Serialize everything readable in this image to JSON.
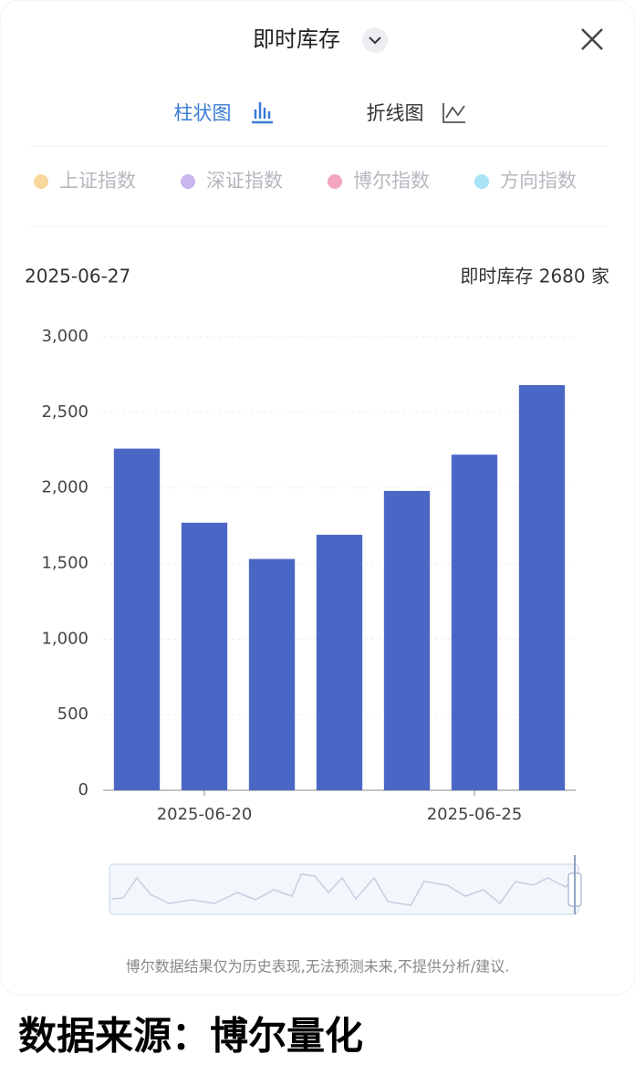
{
  "header": {
    "title": "即时库存"
  },
  "tabs": [
    "柱状图",
    "折线图"
  ],
  "indices": [
    {
      "name": "上证指数",
      "color": "#f7d79b"
    },
    {
      "name": "深证指数",
      "color": "#c9b6ef"
    },
    {
      "name": "博尔指数",
      "color": "#f2a5bd"
    },
    {
      "name": "方向指数",
      "color": "#a9e3f6"
    }
  ],
  "info": {
    "date": "2025-06-27",
    "summary": "即时库存 2680 家"
  },
  "chart_data": {
    "type": "bar",
    "categories": [
      null,
      "2025-06-20",
      null,
      null,
      null,
      "2025-06-25",
      null
    ],
    "values": [
      2260,
      1770,
      1530,
      1690,
      1980,
      2220,
      2680
    ],
    "color": "#4b67c5",
    "ylim": [
      0,
      3000
    ],
    "yticks": [
      0,
      500,
      {
        "value": 1000,
        "label": "1,000"
      },
      {
        "value": 1500,
        "label": "1,500"
      },
      {
        "value": 2000,
        "label": "2,000"
      },
      {
        "value": 2500,
        "label": "2,500"
      },
      {
        "value": 3000,
        "label": "3,000"
      }
    ],
    "grid": true
  },
  "disclaimer": "博尔数据结果仅为历史表现,无法预测未来,不提供分析/建议.",
  "source": "数据来源：博尔量化"
}
